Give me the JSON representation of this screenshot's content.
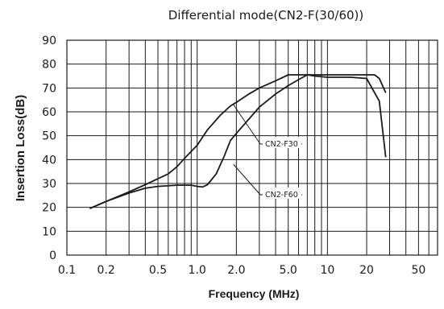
{
  "chart_data": {
    "type": "line",
    "title": "Differential mode(CN2-F(30/60))",
    "xlabel": "Frequency (MHz)",
    "ylabel": "Insertion Loss(dB)",
    "x_scale": "log",
    "xlim": [
      0.1,
      70
    ],
    "ylim": [
      0,
      90
    ],
    "grid": true,
    "x_ticks": [
      0.1,
      0.2,
      0.5,
      1.0,
      2.0,
      5.0,
      10,
      20,
      50
    ],
    "x_tick_labels": [
      "0.1",
      "0.2",
      "0.5",
      "1.0",
      "2.0",
      "5.0",
      "10",
      "20",
      "50"
    ],
    "y_ticks": [
      0,
      10,
      20,
      30,
      40,
      50,
      60,
      70,
      80,
      90
    ],
    "y_tick_labels": [
      "0",
      "10",
      "20",
      "30",
      "40",
      "50",
      "60",
      "70",
      "80",
      "90"
    ],
    "series": [
      {
        "name": "CN2-F30",
        "x": [
          0.15,
          0.2,
          0.3,
          0.4,
          0.5,
          0.6,
          0.7,
          0.8,
          1.0,
          1.2,
          1.5,
          1.8,
          2.0,
          2.5,
          3.0,
          4.0,
          5.0,
          6.0,
          7.0,
          8.0,
          10,
          15,
          20,
          25,
          28
        ],
        "y": [
          19.5,
          22.5,
          26.5,
          29.5,
          32,
          34,
          37,
          40.5,
          46,
          52.5,
          58.5,
          62.5,
          64,
          67.5,
          70,
          73,
          75.5,
          75.5,
          75.5,
          75,
          74.5,
          74.5,
          74,
          64.5,
          41
        ]
      },
      {
        "name": "CN2-F60",
        "x": [
          0.15,
          0.2,
          0.3,
          0.4,
          0.5,
          0.7,
          0.9,
          1.0,
          1.1,
          1.2,
          1.4,
          1.6,
          1.8,
          2.0,
          2.5,
          3.0,
          4.0,
          5.0,
          6.0,
          7.0,
          10,
          15,
          20,
          23,
          25,
          28
        ],
        "y": [
          19.5,
          22.5,
          26,
          28,
          28.8,
          29.3,
          29.3,
          28.8,
          28.5,
          29.5,
          34,
          41,
          48,
          51,
          57,
          62,
          67.5,
          71,
          73.5,
          75.5,
          75.5,
          75.5,
          75.5,
          75.5,
          74,
          68
        ]
      }
    ],
    "annotations": [
      {
        "text": "CN2-F30",
        "series": "CN2-F30",
        "point_x": 1.9,
        "point_y": 63
      },
      {
        "text": "CN2-F60",
        "series": "CN2-F60",
        "point_x": 1.9,
        "point_y": 38
      }
    ]
  }
}
